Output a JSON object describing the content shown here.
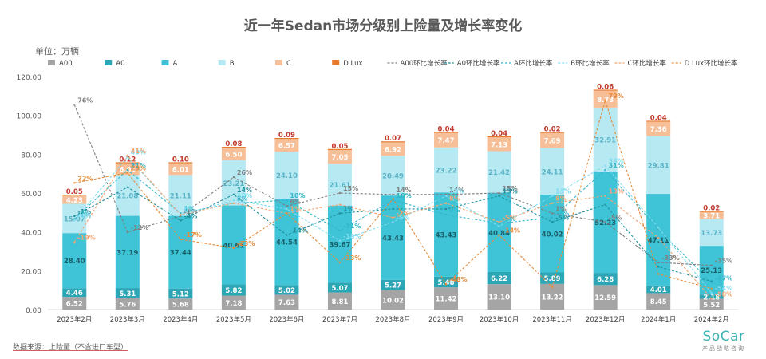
{
  "chart_data": {
    "type": "bar",
    "title": "近一年Sedan市场分级别上险量及增长率变化",
    "unit_label": "单位：万辆",
    "source": "数据来源：上险量（不含进口车型）",
    "categories": [
      "2023年2月",
      "2023年3月",
      "2023年4月",
      "2023年5月",
      "2023年6月",
      "2023年7月",
      "2023年8月",
      "2023年9月",
      "2023年10月",
      "2023年11月",
      "2023年12月",
      "2024年1月",
      "2024年2月"
    ],
    "ylim": [
      0,
      120
    ],
    "yticks": [
      "0.00",
      "20.00",
      "40.00",
      "60.00",
      "80.00",
      "100.00",
      "120.00"
    ],
    "grid": false,
    "legend_position": "top",
    "stacked": true,
    "series": [
      {
        "name": "A00",
        "color": "#a5a5a5",
        "values": [
          6.52,
          5.76,
          5.68,
          7.18,
          7.63,
          8.81,
          10.02,
          11.42,
          13.1,
          13.22,
          12.59,
          8.45,
          5.52
        ]
      },
      {
        "name": "A0",
        "color": "#2ca6b4",
        "values": [
          4.46,
          5.31,
          5.12,
          5.82,
          5.02,
          5.07,
          5.27,
          5.48,
          6.22,
          5.89,
          6.28,
          4.01,
          2.18
        ]
      },
      {
        "name": "A",
        "color": "#3ec4d6",
        "values": [
          28.4,
          37.19,
          37.44,
          40.61,
          44.54,
          39.67,
          43.43,
          43.43,
          40.84,
          40.02,
          52.23,
          47.11,
          25.13
        ]
      },
      {
        "name": "B",
        "color": "#b7e9f2",
        "values": [
          15.07,
          21.08,
          21.11,
          23.21,
          24.1,
          21.61,
          20.49,
          23.22,
          21.42,
          24.11,
          32.91,
          29.81,
          13.73
        ]
      },
      {
        "name": "C",
        "color": "#f6bf98",
        "values": [
          4.23,
          6.01,
          6.01,
          6.5,
          6.57,
          7.05,
          6.92,
          7.47,
          7.13,
          7.69,
          8.73,
          7.36,
          3.71
        ]
      },
      {
        "name": "D Lux",
        "color": "#e8782a",
        "values": [
          0.05,
          0.12,
          0.1,
          0.08,
          0.09,
          0.05,
          0.07,
          0.04,
          0.04,
          0.02,
          0.06,
          0.04,
          0.02
        ]
      }
    ],
    "growth_series": [
      {
        "name": "A00环比增长率",
        "color": "#7f7f7f",
        "values": [
          76,
          -12,
          -1,
          26,
          6,
          15,
          14,
          14,
          15,
          1,
          -5,
          -33,
          -35
        ]
      },
      {
        "name": "A0环比增长率",
        "color": "#1f8f9c",
        "values": [
          -1,
          19,
          -4,
          14,
          -14,
          1,
          4,
          4,
          13,
          -5,
          7,
          -36,
          -46
        ]
      },
      {
        "name": "A环比增长率",
        "color": "#34b6c9",
        "values": [
          -3,
          31,
          1,
          8,
          10,
          -11,
          10,
          0,
          -6,
          -2,
          31,
          -10,
          -47
        ]
      },
      {
        "name": "B环比增长率",
        "color": "#7fdcef",
        "values": [
          -4,
          40,
          0,
          10,
          4,
          -18,
          -5,
          13,
          -8,
          13,
          34,
          -9,
          -54
        ]
      },
      {
        "name": "C环比增长率",
        "color": "#f2a674",
        "values": [
          -19,
          41,
          0,
          8,
          1,
          7,
          -2,
          8,
          -5,
          8,
          13,
          -16,
          -58
        ]
      },
      {
        "name": "D Lux环比增长率",
        "color": "#e58a3a",
        "values": [
          22,
          29,
          -17,
          -23,
          1,
          -33,
          11,
          -48,
          -14,
          -50,
          79,
          -41,
          -51
        ]
      }
    ],
    "growth_labels_shown": [
      "76%",
      "-1%",
      "-3%",
      "-4%",
      "-19%",
      "22%",
      "-12%",
      "31%",
      "40%",
      "41%",
      "29%",
      "1%",
      "-17%",
      "26%",
      "-23%",
      "14%",
      "6%",
      "8%",
      "10%",
      "-14%",
      "15%",
      "-11%",
      "-18%",
      "-33%",
      "14%",
      "10%",
      "0%",
      "-48%",
      "15%",
      "-6%",
      "3%",
      "-2%",
      "-5%",
      "-28%",
      "79%",
      "31%",
      "34%",
      "13%",
      "-33%",
      "-35%",
      "48%",
      "51%",
      "-47%",
      "-54%",
      "-58%"
    ]
  }
}
